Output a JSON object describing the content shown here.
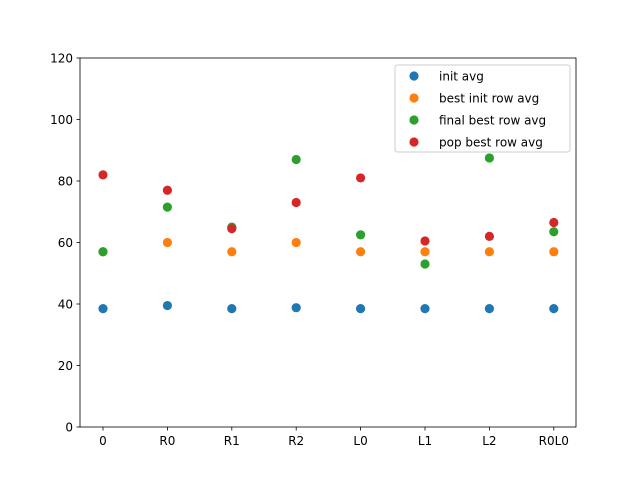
{
  "chart_data": {
    "type": "scatter",
    "title": "",
    "xlabel": "",
    "ylabel": "",
    "categories": [
      "0",
      "R0",
      "R1",
      "R2",
      "L0",
      "L1",
      "L2",
      "R0L0"
    ],
    "ylim": [
      0,
      120
    ],
    "yticks": [
      0,
      20,
      40,
      60,
      80,
      100,
      120
    ],
    "grid": false,
    "legend_position": "top-right",
    "series": [
      {
        "name": "init avg",
        "color": "#1f77b4",
        "values": [
          38.5,
          39.5,
          38.5,
          38.8,
          38.5,
          38.5,
          38.5,
          38.5
        ]
      },
      {
        "name": "best init row avg",
        "color": "#ff7f0e",
        "values": [
          57,
          60,
          57,
          60,
          57,
          57,
          57,
          57
        ]
      },
      {
        "name": "final best row avg",
        "color": "#2ca02c",
        "values": [
          57,
          71.5,
          65,
          87,
          62.5,
          53,
          87.5,
          63.5
        ]
      },
      {
        "name": "pop best row avg",
        "color": "#d62728",
        "values": [
          82,
          77,
          64.5,
          73,
          81,
          60.5,
          62,
          66.5
        ]
      }
    ]
  }
}
